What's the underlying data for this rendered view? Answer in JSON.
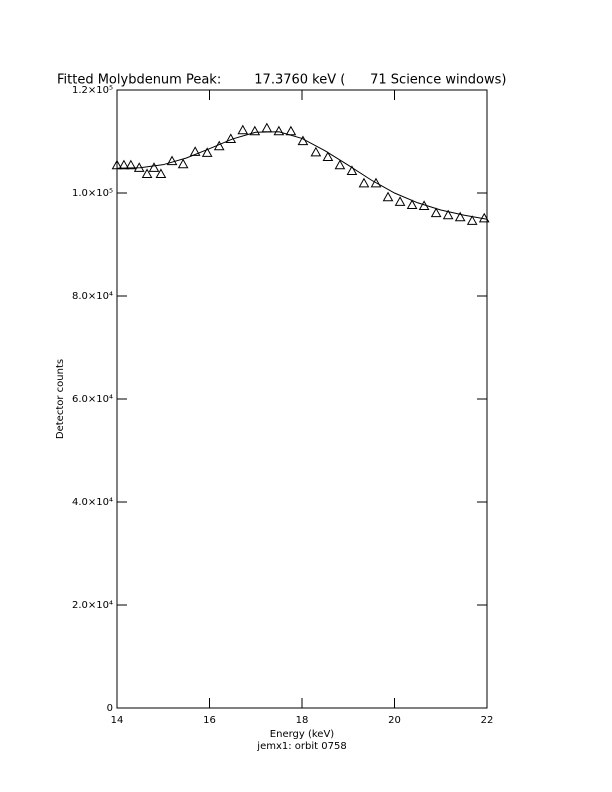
{
  "chart_data": {
    "type": "scatter",
    "title": "Fitted Molybdenum Peak:        17.3760 keV (      71 Science windows)",
    "x_label": "Energy (keV)",
    "y_label": "Detector counts",
    "subtitle": "jemx1: orbit 0758",
    "xlim": [
      14,
      22
    ],
    "xticks": [
      14,
      16,
      18,
      20,
      22
    ],
    "ylim": [
      0,
      120000
    ],
    "yticks": [
      0,
      {
        "value": 20000,
        "label": "2.0×10⁴"
      },
      {
        "value": 40000,
        "label": "4.0×10⁴"
      },
      {
        "value": 60000,
        "label": "6.0×10⁴"
      },
      {
        "value": 80000,
        "label": "8.0×10⁴"
      },
      {
        "value": 100000,
        "label": "1.0×10⁵"
      },
      {
        "value": 120000,
        "label": "1.2×10⁵"
      }
    ],
    "color": "#000000",
    "series": [
      {
        "type": "scatter",
        "marker": "triangle",
        "color": "#000000",
        "x": [
          14.0,
          14.15,
          14.3,
          14.48,
          14.65,
          14.8,
          14.95,
          15.19,
          15.43,
          15.69,
          15.95,
          16.21,
          16.46,
          16.72,
          16.98,
          17.24,
          17.5,
          17.76,
          18.02,
          18.3,
          18.56,
          18.82,
          19.08,
          19.34,
          19.6,
          19.86,
          20.12,
          20.38,
          20.64,
          20.9,
          21.16,
          21.42,
          21.68,
          21.94
        ],
        "values": [
          105400,
          105400,
          105400,
          104900,
          103700,
          104900,
          103700,
          106200,
          105600,
          108000,
          107800,
          109100,
          110500,
          112200,
          112000,
          112600,
          112000,
          112000,
          110100,
          107900,
          107000,
          105400,
          104300,
          101900,
          101900,
          99200,
          98300,
          97700,
          97500,
          96100,
          95700,
          95300,
          94600,
          95100
        ]
      },
      {
        "type": "line",
        "color": "#000000",
        "x": [
          14,
          14.5,
          15,
          15.5,
          16,
          16.5,
          17,
          17.5,
          18,
          18.5,
          19,
          19.5,
          20,
          20.5,
          21,
          21.5,
          22
        ],
        "values": [
          104800,
          104900,
          105500,
          106800,
          108600,
          110500,
          111800,
          111900,
          110600,
          108200,
          105400,
          102500,
          100000,
          98100,
          96700,
          95700,
          94900
        ]
      }
    ]
  }
}
